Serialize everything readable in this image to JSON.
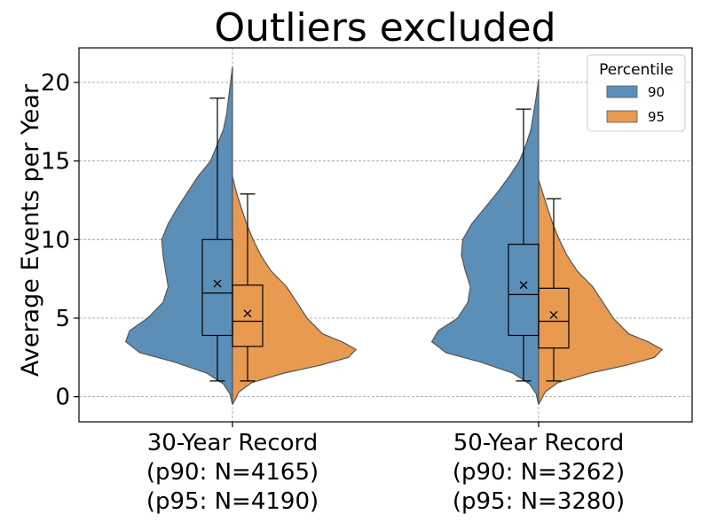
{
  "chart_data": {
    "type": "violin",
    "title": "Outliers excluded",
    "xlabel": "",
    "ylabel": "Average Events per Year",
    "ylim": [
      -1.6,
      22.2
    ],
    "yticks": [
      0,
      5,
      10,
      15,
      20
    ],
    "grid": true,
    "legend": {
      "title": "Percentile",
      "placement": "top-right",
      "entries": [
        {
          "label": "90",
          "color": "#5b8fb8"
        },
        {
          "label": "95",
          "color": "#e89a50"
        }
      ]
    },
    "categories": [
      {
        "label_lines": [
          "30-Year Record",
          "(p90: N=4165)",
          "(p95: N=4190)"
        ],
        "p90": {
          "n": 4165,
          "whisker_low": 1.0,
          "q1": 3.9,
          "median": 6.6,
          "mean": 7.2,
          "q3": 10.0,
          "whisker_high": 19.0,
          "density_range": [
            -0.5,
            21.0
          ],
          "density_profile": [
            [
              -0.5,
              0
            ],
            [
              0.2,
              0.02
            ],
            [
              0.8,
              0.07
            ],
            [
              1.5,
              0.2
            ],
            [
              2.2,
              0.45
            ],
            [
              2.8,
              0.72
            ],
            [
              3.5,
              0.83
            ],
            [
              4.2,
              0.8
            ],
            [
              5,
              0.66
            ],
            [
              6,
              0.54
            ],
            [
              7,
              0.5
            ],
            [
              8,
              0.52
            ],
            [
              9,
              0.54
            ],
            [
              10,
              0.55
            ],
            [
              11,
              0.5
            ],
            [
              12,
              0.43
            ],
            [
              13,
              0.35
            ],
            [
              14,
              0.27
            ],
            [
              15,
              0.17
            ],
            [
              16,
              0.12
            ],
            [
              17,
              0.07
            ],
            [
              18,
              0.045
            ],
            [
              19,
              0.03
            ],
            [
              20,
              0.015
            ],
            [
              21,
              0
            ]
          ]
        },
        "p95": {
          "n": 4190,
          "whisker_low": 1.0,
          "q1": 3.2,
          "median": 4.8,
          "mean": 5.3,
          "q3": 7.1,
          "whisker_high": 12.9,
          "density_range": [
            -0.5,
            14.0
          ],
          "density_profile": [
            [
              -0.5,
              0
            ],
            [
              0.3,
              0.05
            ],
            [
              0.9,
              0.15
            ],
            [
              1.5,
              0.4
            ],
            [
              2,
              0.68
            ],
            [
              2.5,
              0.9
            ],
            [
              3,
              0.96
            ],
            [
              3.5,
              0.85
            ],
            [
              4,
              0.7
            ],
            [
              5,
              0.58
            ],
            [
              6,
              0.5
            ],
            [
              7,
              0.42
            ],
            [
              8,
              0.3
            ],
            [
              9,
              0.22
            ],
            [
              10,
              0.16
            ],
            [
              11,
              0.11
            ],
            [
              12,
              0.07
            ],
            [
              13,
              0.03
            ],
            [
              14,
              0
            ]
          ]
        }
      },
      {
        "label_lines": [
          "50-Year Record",
          "(p90: N=3262)",
          "(p95: N=3280)"
        ],
        "p90": {
          "n": 3262,
          "whisker_low": 1.0,
          "q1": 3.9,
          "median": 6.5,
          "mean": 7.1,
          "q3": 9.7,
          "whisker_high": 18.3,
          "density_range": [
            -0.5,
            20.2
          ],
          "density_profile": [
            [
              -0.5,
              0
            ],
            [
              0.2,
              0.02
            ],
            [
              0.8,
              0.07
            ],
            [
              1.5,
              0.2
            ],
            [
              2.2,
              0.45
            ],
            [
              2.8,
              0.72
            ],
            [
              3.5,
              0.83
            ],
            [
              4.2,
              0.78
            ],
            [
              5,
              0.63
            ],
            [
              6,
              0.55
            ],
            [
              7,
              0.53
            ],
            [
              8,
              0.57
            ],
            [
              9,
              0.6
            ],
            [
              10,
              0.59
            ],
            [
              11,
              0.52
            ],
            [
              12,
              0.42
            ],
            [
              13,
              0.32
            ],
            [
              14,
              0.23
            ],
            [
              15,
              0.15
            ],
            [
              16,
              0.1
            ],
            [
              17,
              0.06
            ],
            [
              18,
              0.04
            ],
            [
              19,
              0.02
            ],
            [
              20.2,
              0
            ]
          ]
        },
        "p95": {
          "n": 3280,
          "whisker_low": 1.0,
          "q1": 3.1,
          "median": 4.8,
          "mean": 5.2,
          "q3": 6.9,
          "whisker_high": 12.6,
          "density_range": [
            -0.5,
            13.8
          ],
          "density_profile": [
            [
              -0.5,
              0
            ],
            [
              0.3,
              0.05
            ],
            [
              0.9,
              0.15
            ],
            [
              1.5,
              0.4
            ],
            [
              2,
              0.68
            ],
            [
              2.5,
              0.9
            ],
            [
              3,
              0.96
            ],
            [
              3.5,
              0.85
            ],
            [
              4,
              0.7
            ],
            [
              5,
              0.58
            ],
            [
              6,
              0.5
            ],
            [
              7,
              0.42
            ],
            [
              8,
              0.3
            ],
            [
              9,
              0.22
            ],
            [
              10,
              0.16
            ],
            [
              11,
              0.11
            ],
            [
              12,
              0.07
            ],
            [
              13,
              0.03
            ],
            [
              13.8,
              0
            ]
          ]
        }
      }
    ]
  }
}
